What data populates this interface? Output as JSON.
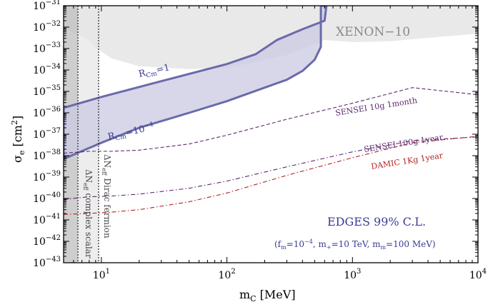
{
  "chart_data": {
    "type": "line",
    "xscale": "log",
    "yscale": "log",
    "xlim": [
      5,
      10000
    ],
    "ylim": [
      1e-43,
      1e-31
    ],
    "xlabel": "m_C [MeV]",
    "ylabel": "σ_e [cm²]",
    "x_ticks": [
      {
        "value": 10,
        "base": "10",
        "exp": "1"
      },
      {
        "value": 100,
        "base": "10",
        "exp": "2"
      },
      {
        "value": 1000,
        "base": "10",
        "exp": "3"
      },
      {
        "value": 10000,
        "base": "10",
        "exp": "4"
      }
    ],
    "y_ticks": [
      {
        "value": 1e-31,
        "base": "10",
        "exp": "−31"
      },
      {
        "value": 1e-32,
        "base": "10",
        "exp": "−32"
      },
      {
        "value": 1e-33,
        "base": "10",
        "exp": "−33"
      },
      {
        "value": 1e-34,
        "base": "10",
        "exp": "−34"
      },
      {
        "value": 1e-35,
        "base": "10",
        "exp": "−35"
      },
      {
        "value": 1e-36,
        "base": "10",
        "exp": "−36"
      },
      {
        "value": 1e-37,
        "base": "10",
        "exp": "−37"
      },
      {
        "value": 1e-38,
        "base": "10",
        "exp": "−38"
      },
      {
        "value": 1e-39,
        "base": "10",
        "exp": "−39"
      },
      {
        "value": 1e-40,
        "base": "10",
        "exp": "−40"
      },
      {
        "value": 1e-41,
        "base": "10",
        "exp": "−41"
      },
      {
        "value": 1e-42,
        "base": "10",
        "exp": "−42"
      },
      {
        "value": 1e-43,
        "base": "10",
        "exp": "−43"
      }
    ],
    "regions": [
      {
        "name": "XENON-10",
        "label": "XENON−10",
        "color": "#e9e9e9",
        "points": [
          [
            5,
            1e-31
          ],
          [
            10000,
            1e-31
          ],
          [
            10000,
            5e-33
          ],
          [
            2000,
            2.2e-33
          ],
          [
            1000,
            2e-33
          ],
          [
            600,
            2.5e-33
          ],
          [
            300,
            5e-34
          ],
          [
            100,
            1.2e-34
          ],
          [
            50,
            1.1e-34
          ],
          [
            20,
            1.5e-34
          ],
          [
            12,
            3.5e-34
          ],
          [
            9,
            1.1e-33
          ],
          [
            7.5,
            3e-33
          ],
          [
            5,
            1e-32
          ]
        ]
      },
      {
        "name": "EDGES 99% C.L.",
        "label": "EDGES 99% C.L.",
        "color": "#c9c9e1",
        "edge_color": "#6a6aab",
        "points": [
          [
            5,
            1.7e-36
          ],
          [
            10,
            5.5e-36
          ],
          [
            30,
            3e-35
          ],
          [
            100,
            1.9e-34
          ],
          [
            170,
            5.5e-34
          ],
          [
            250,
            2.5e-33
          ],
          [
            400,
            8e-33
          ],
          [
            600,
            2e-32
          ],
          [
            620,
            1e-31
          ],
          [
            560,
            1e-31
          ],
          [
            560,
            1.2e-33
          ],
          [
            500,
            3e-34
          ],
          [
            400,
            9e-35
          ],
          [
            300,
            3.5e-35
          ],
          [
            200,
            1.5e-35
          ],
          [
            100,
            3.5e-36
          ],
          [
            50,
            1e-36
          ],
          [
            20,
            2e-37
          ],
          [
            10,
            4e-38
          ],
          [
            5,
            7e-39
          ]
        ]
      }
    ],
    "vertical_bands": [
      {
        "name": "ΔN_eff complex scalar",
        "x_min": 5,
        "x_max": 6.5,
        "color": "#bdbdbd"
      },
      {
        "name": "ΔN_eff Dirac fermion",
        "x_min": 6.5,
        "x_max": 9.5,
        "color": "#e5e5e5"
      }
    ],
    "vertical_lines": [
      6.5,
      9.5
    ],
    "series": [
      {
        "name": "SENSEI 10g 1month",
        "color": "#5e2a6e",
        "dash": "5,3",
        "x": [
          5,
          8,
          12,
          20,
          50,
          100,
          300,
          1000,
          3000,
          10000
        ],
        "y": [
          1.3e-38,
          1.6e-38,
          1.6e-38,
          1.8e-38,
          3.5e-38,
          9e-38,
          5e-37,
          2.8e-36,
          1.5e-35,
          7e-36
        ]
      },
      {
        "name": "SENSEI 100g 1year",
        "color": "#5e2a6e",
        "dash": "6,3,1.5,3",
        "x": [
          5,
          8,
          12,
          20,
          50,
          100,
          300,
          1000,
          3000,
          10000
        ],
        "y": [
          9e-41,
          1.2e-40,
          1.3e-40,
          1.6e-40,
          3e-40,
          6.5e-40,
          3e-39,
          1.5e-38,
          5e-38,
          7.5e-38
        ]
      },
      {
        "name": "DAMIC 1Kg 1year",
        "color": "#b22222",
        "dash": "6,3,1.5,3",
        "x": [
          5,
          8,
          12,
          20,
          50,
          100,
          300,
          1000,
          3000,
          10000
        ],
        "y": [
          1.8e-41,
          2e-41,
          2.3e-41,
          3e-41,
          7e-41,
          1.8e-40,
          1.2e-39,
          8e-39,
          4e-38,
          8e-38
        ]
      }
    ],
    "annotations": {
      "rcm1": {
        "base": "R",
        "sub": "Cm",
        "rest": "=1"
      },
      "rcm4": {
        "base": "R",
        "sub": "Cm",
        "rest": "=10",
        "sup": "−4"
      },
      "sensei_10g": "SENSEI 10g 1month",
      "sensei_100g": "SENSEI 100g 1year",
      "damic": "DAMIC 1Kg 1year",
      "xenon": "XENON−10",
      "edges_title": "EDGES 99% C.L.",
      "edges_params": {
        "open": "(f",
        "f_sub": "m",
        "f_eq": "=10",
        "f_sup": "−4",
        "mplus": ", m",
        "mplus_sub": "+",
        "mplus_val": "=10 TeV, m",
        "mm_sub": "m",
        "mm_val": "=100 MeV)"
      },
      "complex_scalar": {
        "delta": "ΔN",
        "sub": "eff",
        "rest": " complex scalar"
      },
      "dirac_fermion": {
        "delta": "ΔN",
        "sub": "eff",
        "rest": " Dirac fermion"
      }
    },
    "axis_label_parts": {
      "x": {
        "base": "m",
        "sub": "C",
        "rest": " [MeV]"
      },
      "y": {
        "base": "σ",
        "sub": "e",
        "rest": " [cm",
        "sup": "2",
        "end": "]"
      }
    }
  }
}
